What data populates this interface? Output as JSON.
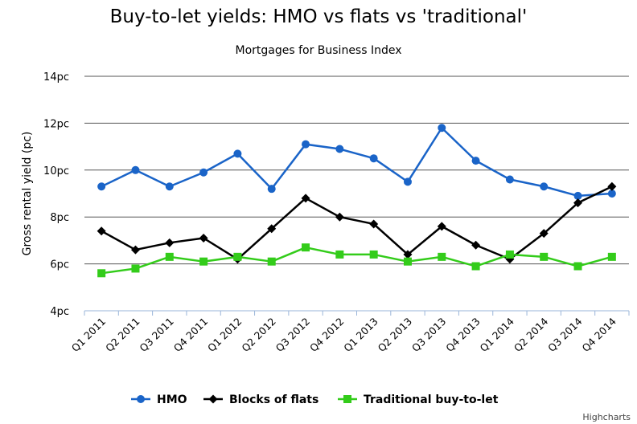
{
  "chart_data": {
    "type": "line",
    "title": "Buy-to-let yields: HMO vs flats vs 'traditional'",
    "subtitle": "Mortgages for Business Index",
    "ylabel": "Gross rental yield (pc)",
    "xlabel": "",
    "ylim": [
      4,
      14
    ],
    "y_ticks": [
      4,
      6,
      8,
      10,
      12,
      14
    ],
    "y_tick_labels": [
      "4pc",
      "6pc",
      "8pc",
      "10pc",
      "12pc",
      "14pc"
    ],
    "grid": true,
    "legend_position": "bottom",
    "categories": [
      "Q1 2011",
      "Q2 2011",
      "Q3 2011",
      "Q4 2011",
      "Q1 2012",
      "Q2 2012",
      "Q3 2012",
      "Q4 2012",
      "Q1 2013",
      "Q2 2013",
      "Q3 2013",
      "Q4 2013",
      "Q1 2014",
      "Q2 2014",
      "Q3 2014",
      "Q4 2014"
    ],
    "series": [
      {
        "name": "HMO",
        "color": "#1a64c8",
        "marker": "circle",
        "values": [
          9.3,
          10.0,
          9.3,
          9.9,
          10.7,
          9.2,
          11.1,
          10.9,
          10.5,
          9.5,
          11.8,
          10.4,
          9.6,
          9.3,
          8.9,
          9.0
        ]
      },
      {
        "name": "Blocks of flats",
        "color": "#000000",
        "marker": "diamond",
        "values": [
          7.4,
          6.6,
          6.9,
          7.1,
          6.2,
          7.5,
          8.8,
          8.0,
          7.7,
          6.4,
          7.6,
          6.8,
          6.2,
          7.3,
          8.6,
          9.3
        ]
      },
      {
        "name": "Traditional buy-to-let",
        "color": "#33cc1a",
        "marker": "square",
        "values": [
          5.6,
          5.8,
          6.3,
          6.1,
          6.3,
          6.1,
          6.7,
          6.4,
          6.4,
          6.1,
          6.3,
          5.9,
          6.4,
          6.3,
          5.9,
          6.3
        ]
      }
    ]
  },
  "credits": "Highcharts"
}
